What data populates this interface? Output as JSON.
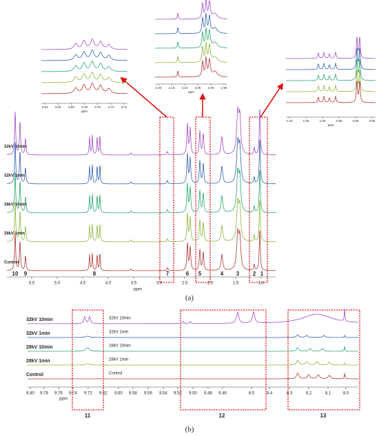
{
  "panel_a": {
    "label": "(a)",
    "rows": [
      "32kV 10min",
      "32kV 1min",
      "28kV 10min",
      "28kV 1min",
      "Control"
    ],
    "x_axis": {
      "title": "ppm",
      "ticks": [
        "5.5",
        "5.0",
        "4.5",
        "4.0",
        "3.5",
        "3.0",
        "2.5",
        "2.0",
        "1.5",
        "1.0"
      ]
    },
    "peaks": [
      "10",
      "9",
      "8",
      "7",
      "6",
      "5",
      "4",
      "3",
      "2",
      "1"
    ],
    "insets": [
      {
        "title": "ppm",
        "ticks": [
          "3.84",
          "3.82",
          "3.80",
          "3.78",
          "3.76",
          "3.74",
          "3.72"
        ]
      },
      {
        "title": "ppm",
        "ticks": [
          "2.20",
          "2.15",
          "2.10",
          "2.05",
          "2.00",
          "1.95"
        ]
      },
      {
        "title": "ppm",
        "ticks": [
          "1.10",
          "1.05",
          "1.00",
          "0.95",
          "0.90",
          "0.85"
        ]
      }
    ]
  },
  "panel_b": {
    "label": "(b)",
    "rows": [
      "32kV 10min",
      "32kV 1min",
      "28kV 10min",
      "28kV 1min",
      "Control"
    ],
    "inner_rows": [
      "32kV 10min",
      "32kV 1min",
      "28kV 10min",
      "28kV 1min",
      "Control"
    ],
    "x_axis": {
      "title": "ppm",
      "ticks": [
        "9.80",
        "9.78",
        "9.76",
        "9.74",
        "9.72",
        "9.62",
        "9.60",
        "9.58",
        "9.56",
        "9.54",
        "9.52",
        "9.50",
        "9.48",
        "9.46",
        "8.5",
        "8.4",
        "8.3",
        "8.2",
        "8.1",
        "8.0"
      ]
    },
    "regions": [
      "11",
      "12",
      "13"
    ]
  }
}
